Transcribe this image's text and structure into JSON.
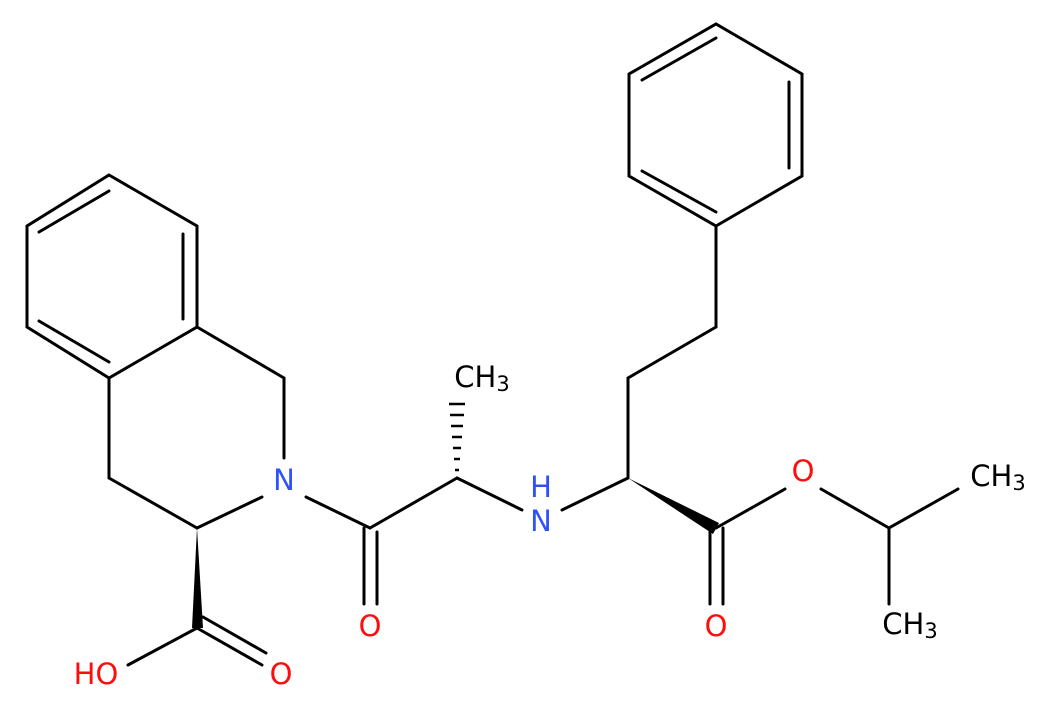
{
  "atoms": [
    {
      "label": "N"
    },
    {
      "label": "N"
    },
    {
      "label": "H"
    },
    {
      "label": "O"
    },
    {
      "label": "O"
    },
    {
      "label": "O"
    },
    {
      "label": "O"
    },
    {
      "label": "HO"
    },
    {
      "main": "CH",
      "sub": "3"
    },
    {
      "main": "CH",
      "sub": "3"
    },
    {
      "main": "CH",
      "sub": "3"
    }
  ]
}
